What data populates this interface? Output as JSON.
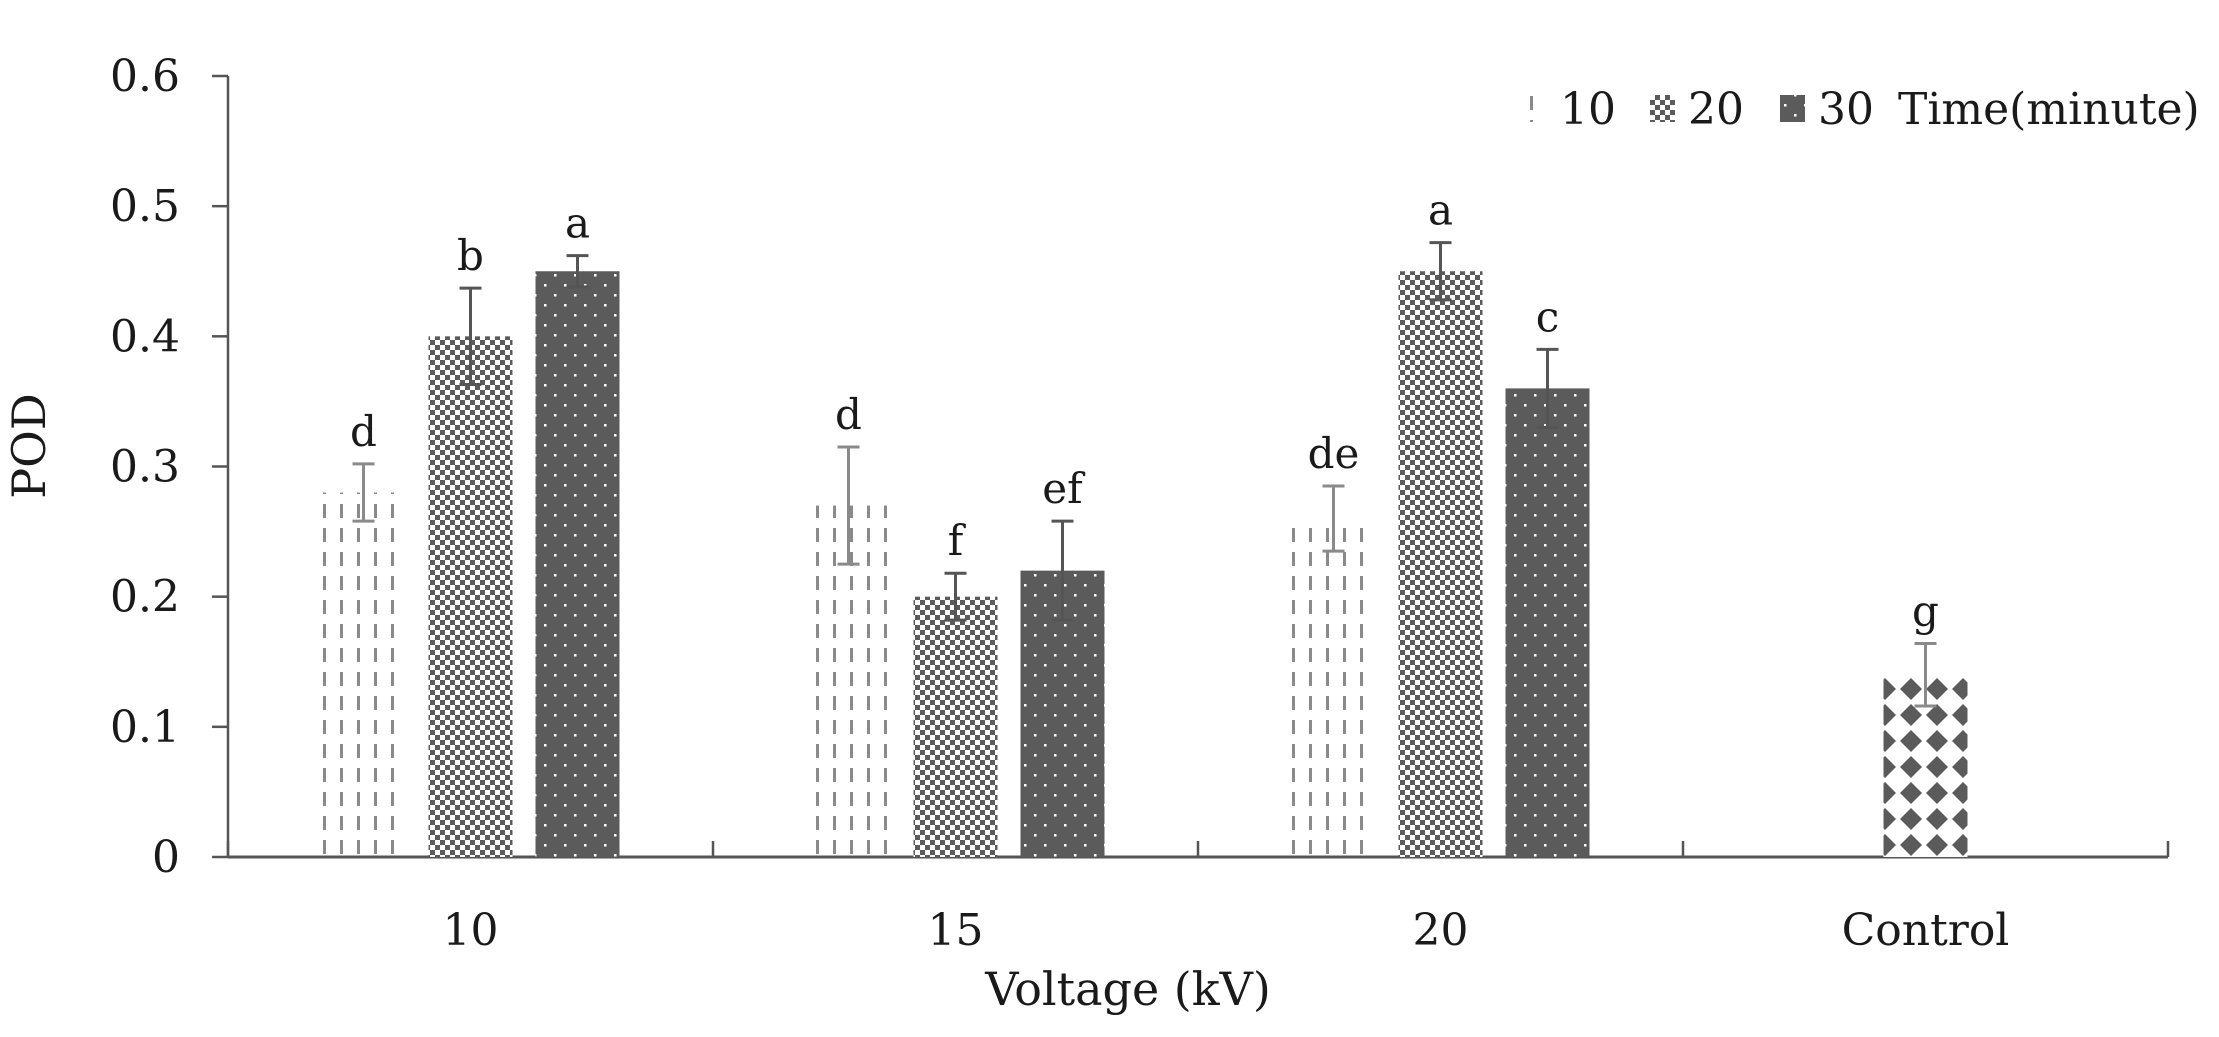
{
  "chart_data": {
    "type": "bar",
    "title": "",
    "xlabel": "Voltage (kV)",
    "ylabel": "POD",
    "ylim": [
      0,
      0.6
    ],
    "yticks": [
      "0",
      "0.1",
      "0.2",
      "0.3",
      "0.4",
      "0.5",
      "0.6"
    ],
    "categories": [
      "10",
      "15",
      "20",
      "Control"
    ],
    "legend_title": "Time(minute)",
    "legend_position": "top-right",
    "series": [
      {
        "name": "10",
        "pattern": "dashed",
        "values": [
          0.28,
          0.27,
          0.26,
          null
        ],
        "errors": [
          0.022,
          0.045,
          0.025,
          null
        ],
        "letters": [
          "d",
          "d",
          "de",
          null
        ]
      },
      {
        "name": "20",
        "pattern": "checker",
        "values": [
          0.4,
          0.2,
          0.45,
          null
        ],
        "errors": [
          0.037,
          0.018,
          0.022,
          null
        ],
        "letters": [
          "b",
          "f",
          "a",
          null
        ]
      },
      {
        "name": "30",
        "pattern": "dots",
        "values": [
          0.45,
          0.22,
          0.36,
          null
        ],
        "errors": [
          0.012,
          0.038,
          0.03,
          null
        ],
        "letters": [
          "a",
          "ef",
          "c",
          null
        ]
      }
    ],
    "control": {
      "value": 0.14,
      "error": 0.024,
      "letter": "g",
      "pattern": "diamonds"
    },
    "colors": {
      "axis": "#555555",
      "dark": "#555555",
      "light": "#8a8a8a",
      "bar_dark": "#5b5b5b"
    }
  }
}
